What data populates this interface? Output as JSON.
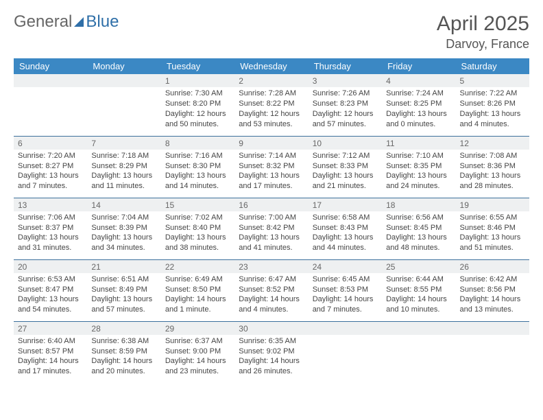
{
  "brand": {
    "part1": "General",
    "part2": "Blue"
  },
  "title": "April 2025",
  "location": "Darvoy, France",
  "colors": {
    "header_bg": "#3b88c4",
    "header_text": "#ffffff",
    "border": "#3b6f9c",
    "daynum_bg": "#eef0f1",
    "text": "#444444",
    "title": "#555555"
  },
  "weekdays": [
    "Sunday",
    "Monday",
    "Tuesday",
    "Wednesday",
    "Thursday",
    "Friday",
    "Saturday"
  ],
  "weeks": [
    [
      null,
      null,
      {
        "n": "1",
        "sr": "Sunrise: 7:30 AM",
        "ss": "Sunset: 8:20 PM",
        "dl": "Daylight: 12 hours and 50 minutes."
      },
      {
        "n": "2",
        "sr": "Sunrise: 7:28 AM",
        "ss": "Sunset: 8:22 PM",
        "dl": "Daylight: 12 hours and 53 minutes."
      },
      {
        "n": "3",
        "sr": "Sunrise: 7:26 AM",
        "ss": "Sunset: 8:23 PM",
        "dl": "Daylight: 12 hours and 57 minutes."
      },
      {
        "n": "4",
        "sr": "Sunrise: 7:24 AM",
        "ss": "Sunset: 8:25 PM",
        "dl": "Daylight: 13 hours and 0 minutes."
      },
      {
        "n": "5",
        "sr": "Sunrise: 7:22 AM",
        "ss": "Sunset: 8:26 PM",
        "dl": "Daylight: 13 hours and 4 minutes."
      }
    ],
    [
      {
        "n": "6",
        "sr": "Sunrise: 7:20 AM",
        "ss": "Sunset: 8:27 PM",
        "dl": "Daylight: 13 hours and 7 minutes."
      },
      {
        "n": "7",
        "sr": "Sunrise: 7:18 AM",
        "ss": "Sunset: 8:29 PM",
        "dl": "Daylight: 13 hours and 11 minutes."
      },
      {
        "n": "8",
        "sr": "Sunrise: 7:16 AM",
        "ss": "Sunset: 8:30 PM",
        "dl": "Daylight: 13 hours and 14 minutes."
      },
      {
        "n": "9",
        "sr": "Sunrise: 7:14 AM",
        "ss": "Sunset: 8:32 PM",
        "dl": "Daylight: 13 hours and 17 minutes."
      },
      {
        "n": "10",
        "sr": "Sunrise: 7:12 AM",
        "ss": "Sunset: 8:33 PM",
        "dl": "Daylight: 13 hours and 21 minutes."
      },
      {
        "n": "11",
        "sr": "Sunrise: 7:10 AM",
        "ss": "Sunset: 8:35 PM",
        "dl": "Daylight: 13 hours and 24 minutes."
      },
      {
        "n": "12",
        "sr": "Sunrise: 7:08 AM",
        "ss": "Sunset: 8:36 PM",
        "dl": "Daylight: 13 hours and 28 minutes."
      }
    ],
    [
      {
        "n": "13",
        "sr": "Sunrise: 7:06 AM",
        "ss": "Sunset: 8:37 PM",
        "dl": "Daylight: 13 hours and 31 minutes."
      },
      {
        "n": "14",
        "sr": "Sunrise: 7:04 AM",
        "ss": "Sunset: 8:39 PM",
        "dl": "Daylight: 13 hours and 34 minutes."
      },
      {
        "n": "15",
        "sr": "Sunrise: 7:02 AM",
        "ss": "Sunset: 8:40 PM",
        "dl": "Daylight: 13 hours and 38 minutes."
      },
      {
        "n": "16",
        "sr": "Sunrise: 7:00 AM",
        "ss": "Sunset: 8:42 PM",
        "dl": "Daylight: 13 hours and 41 minutes."
      },
      {
        "n": "17",
        "sr": "Sunrise: 6:58 AM",
        "ss": "Sunset: 8:43 PM",
        "dl": "Daylight: 13 hours and 44 minutes."
      },
      {
        "n": "18",
        "sr": "Sunrise: 6:56 AM",
        "ss": "Sunset: 8:45 PM",
        "dl": "Daylight: 13 hours and 48 minutes."
      },
      {
        "n": "19",
        "sr": "Sunrise: 6:55 AM",
        "ss": "Sunset: 8:46 PM",
        "dl": "Daylight: 13 hours and 51 minutes."
      }
    ],
    [
      {
        "n": "20",
        "sr": "Sunrise: 6:53 AM",
        "ss": "Sunset: 8:47 PM",
        "dl": "Daylight: 13 hours and 54 minutes."
      },
      {
        "n": "21",
        "sr": "Sunrise: 6:51 AM",
        "ss": "Sunset: 8:49 PM",
        "dl": "Daylight: 13 hours and 57 minutes."
      },
      {
        "n": "22",
        "sr": "Sunrise: 6:49 AM",
        "ss": "Sunset: 8:50 PM",
        "dl": "Daylight: 14 hours and 1 minute."
      },
      {
        "n": "23",
        "sr": "Sunrise: 6:47 AM",
        "ss": "Sunset: 8:52 PM",
        "dl": "Daylight: 14 hours and 4 minutes."
      },
      {
        "n": "24",
        "sr": "Sunrise: 6:45 AM",
        "ss": "Sunset: 8:53 PM",
        "dl": "Daylight: 14 hours and 7 minutes."
      },
      {
        "n": "25",
        "sr": "Sunrise: 6:44 AM",
        "ss": "Sunset: 8:55 PM",
        "dl": "Daylight: 14 hours and 10 minutes."
      },
      {
        "n": "26",
        "sr": "Sunrise: 6:42 AM",
        "ss": "Sunset: 8:56 PM",
        "dl": "Daylight: 14 hours and 13 minutes."
      }
    ],
    [
      {
        "n": "27",
        "sr": "Sunrise: 6:40 AM",
        "ss": "Sunset: 8:57 PM",
        "dl": "Daylight: 14 hours and 17 minutes."
      },
      {
        "n": "28",
        "sr": "Sunrise: 6:38 AM",
        "ss": "Sunset: 8:59 PM",
        "dl": "Daylight: 14 hours and 20 minutes."
      },
      {
        "n": "29",
        "sr": "Sunrise: 6:37 AM",
        "ss": "Sunset: 9:00 PM",
        "dl": "Daylight: 14 hours and 23 minutes."
      },
      {
        "n": "30",
        "sr": "Sunrise: 6:35 AM",
        "ss": "Sunset: 9:02 PM",
        "dl": "Daylight: 14 hours and 26 minutes."
      },
      null,
      null,
      null
    ]
  ]
}
